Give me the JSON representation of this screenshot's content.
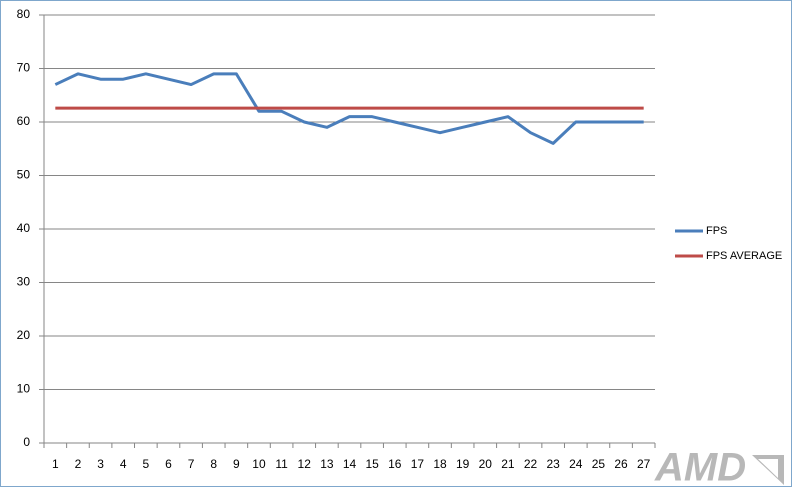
{
  "chart_data": {
    "type": "line",
    "categories": [
      "1",
      "2",
      "3",
      "4",
      "5",
      "6",
      "7",
      "8",
      "9",
      "10",
      "11",
      "12",
      "13",
      "14",
      "15",
      "16",
      "17",
      "18",
      "19",
      "20",
      "21",
      "22",
      "23",
      "24",
      "25",
      "26",
      "27"
    ],
    "series": [
      {
        "name": "FPS",
        "color": "#4a7ebb",
        "values": [
          67,
          69,
          68,
          68,
          69,
          68,
          67,
          69,
          69,
          62,
          62,
          60,
          59,
          61,
          61,
          60,
          59,
          58,
          59,
          60,
          61,
          58,
          56,
          60,
          60,
          60,
          60
        ]
      },
      {
        "name": "FPS AVERAGE",
        "color": "#be4b48",
        "values": [
          62.6,
          62.6,
          62.6,
          62.6,
          62.6,
          62.6,
          62.6,
          62.6,
          62.6,
          62.6,
          62.6,
          62.6,
          62.6,
          62.6,
          62.6,
          62.6,
          62.6,
          62.6,
          62.6,
          62.6,
          62.6,
          62.6,
          62.6,
          62.6,
          62.6,
          62.6,
          62.6
        ]
      }
    ],
    "ylim": [
      0,
      80
    ],
    "yticks": [
      0,
      10,
      20,
      30,
      40,
      50,
      60,
      70,
      80
    ],
    "grid": true,
    "legend": "right"
  },
  "watermark": "AMD"
}
